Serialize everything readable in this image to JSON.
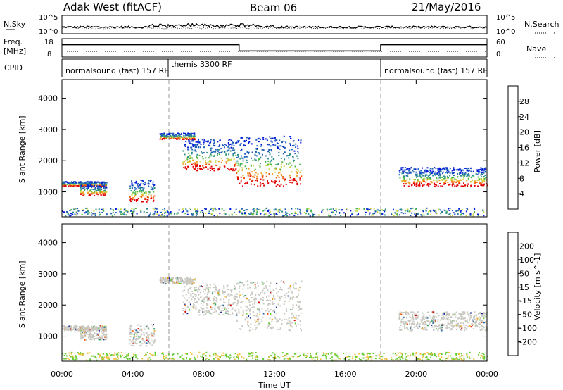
{
  "header": {
    "station": "Adak West (fitACF)",
    "beam": "Beam 06",
    "date": "21/May/2016"
  },
  "strip_labels": {
    "nsky": "N.Sky",
    "nsearch": "N.Search",
    "freq_top": "Freq.",
    "freq_unit": "[MHz]",
    "nave": "Nave",
    "cpid": "CPID",
    "nsky_ticks": [
      "10^5",
      "10^0"
    ],
    "nsearch_ticks": [
      "10^5",
      "10^0"
    ],
    "freq_ticks": [
      "18",
      "8"
    ],
    "nave_ticks": [
      "60",
      "0"
    ]
  },
  "cpid_segments": [
    {
      "label": "normalsound (fast) 157 RF",
      "start": 0
    },
    {
      "label": "themis 3300 RF",
      "start": 6
    },
    {
      "label": "normalsound (fast) 157 RF",
      "start": 18
    }
  ],
  "axes": {
    "xlabel": "Time UT",
    "xticks": [
      "00:00",
      "04:00",
      "08:00",
      "12:00",
      "16:00",
      "20:00",
      "00:00"
    ],
    "ylabel": "Slant Range [km]",
    "yticks": [
      "1000",
      "2000",
      "3000",
      "4000"
    ]
  },
  "colorbars": {
    "power_label": "Power [dB]",
    "power_ticks": [
      "4",
      "8",
      "12",
      "16",
      "20",
      "24",
      "28"
    ],
    "power_colors": [
      "#0018d8",
      "#1f5fb8",
      "#2a8f8a",
      "#4cb84c",
      "#c8d84a",
      "#f0a020",
      "#ee5a10",
      "#e00000"
    ],
    "velocity_label": "Velocity [m s^-1]",
    "velocity_ticks": [
      "200",
      "100",
      "50",
      "15",
      "-15",
      "-50",
      "-100",
      "-200"
    ],
    "velocity_colors": [
      "#1a2a9a",
      "#2a6aa8",
      "#2fa060",
      "#66cc33",
      "#c8c8c0",
      "#f0c040",
      "#f09a10",
      "#f05a10",
      "#e00000"
    ]
  },
  "chart_data": {
    "type": "heatmap",
    "x_range_hours": [
      0,
      24
    ],
    "y_range_km": [
      200,
      4600
    ],
    "cpid_change_times": [
      6,
      18
    ],
    "freq_mhz": [
      {
        "from": 0,
        "to": 10,
        "value": 15
      },
      {
        "from": 10,
        "to": 18,
        "value": 11
      },
      {
        "from": 18,
        "to": 24,
        "value": 15
      }
    ],
    "scatter_features": [
      {
        "t0": 0.0,
        "t1": 2.5,
        "r_top": 1350,
        "r_bot": 1200,
        "note": "band"
      },
      {
        "t0": 1.0,
        "t1": 2.5,
        "r_top": 1250,
        "r_bot": 900
      },
      {
        "t0": 3.8,
        "t1": 5.2,
        "r_top": 1400,
        "r_bot": 700
      },
      {
        "t0": 5.5,
        "t1": 7.5,
        "r_top": 2900,
        "r_bot": 2700
      },
      {
        "t0": 6.8,
        "t1": 9.8,
        "r_top": 2700,
        "r_bot": 1700
      },
      {
        "t0": 9.8,
        "t1": 13.5,
        "r_top": 2800,
        "r_bot": 1200
      },
      {
        "t0": 19.0,
        "t1": 24.0,
        "r_top": 1800,
        "r_bot": 1200
      }
    ]
  }
}
